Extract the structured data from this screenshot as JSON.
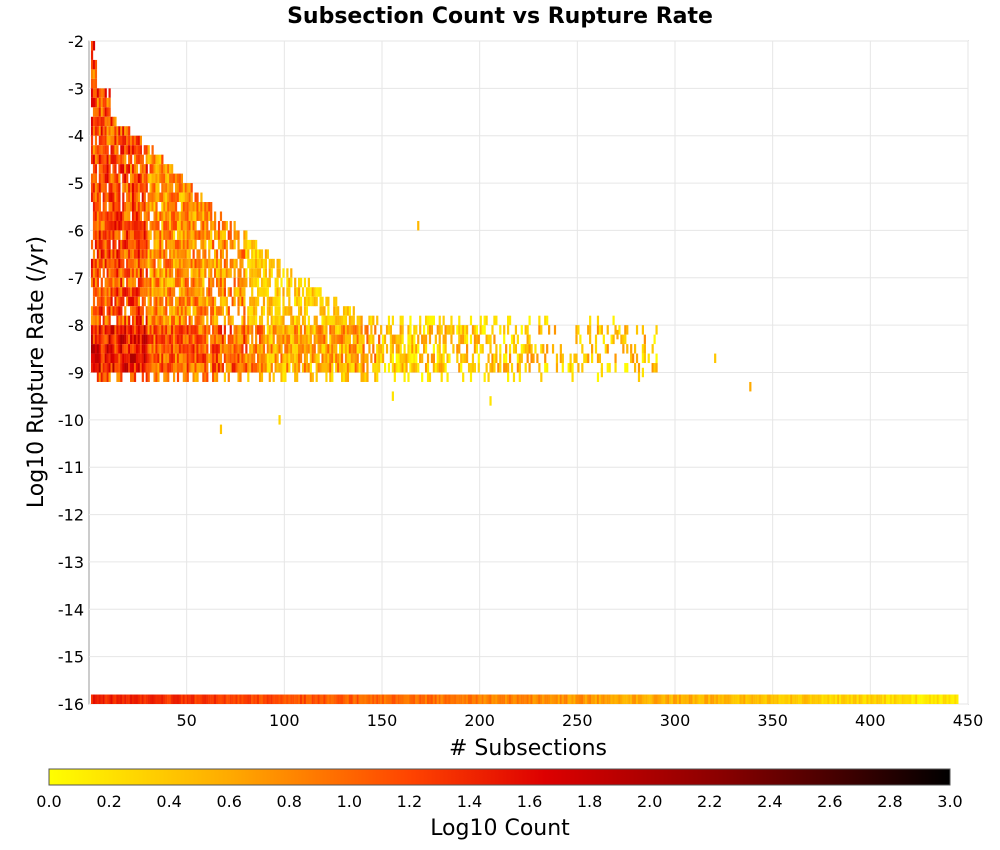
{
  "chart_data": {
    "type": "heatmap",
    "title": "Subsection Count vs Rupture Rate",
    "xlabel": "# Subsections",
    "ylabel": "Log10 Rupture Rate (/yr)",
    "xlim": [
      0,
      450
    ],
    "ylim": [
      -16,
      -2
    ],
    "x_ticks": [
      50,
      100,
      150,
      200,
      250,
      300,
      350,
      400,
      450
    ],
    "y_ticks": [
      -2,
      -3,
      -4,
      -5,
      -6,
      -7,
      -8,
      -9,
      -10,
      -11,
      -12,
      -13,
      -14,
      -15,
      -16
    ],
    "grid": true,
    "bin_width_x": 1,
    "bin_height_y": 0.2,
    "colorbar": {
      "label": "Log10 Count",
      "range": [
        0,
        3
      ],
      "ticks": [
        "0.0",
        "0.2",
        "0.4",
        "0.6",
        "0.8",
        "1.0",
        "1.2",
        "1.4",
        "1.6",
        "1.8",
        "2.0",
        "2.2",
        "2.4",
        "2.6",
        "2.8",
        "3.0"
      ],
      "stops": [
        "#ffff00",
        "#ffaa00",
        "#ff4400",
        "#dd0000",
        "#880000",
        "#000000"
      ]
    },
    "cells": [
      {
        "x": 168,
        "y": -6.0,
        "c": 0.5
      },
      {
        "x": 320,
        "y": -8.8,
        "c": 0.4
      },
      {
        "x": 338,
        "y": -9.4,
        "c": 0.6
      },
      {
        "x": 283,
        "y": -9.1,
        "c": 0.2
      },
      {
        "x": 270,
        "y": -8.3,
        "c": 0.6
      },
      {
        "x": 67,
        "y": -10.3,
        "c": 0.4
      },
      {
        "x": 97,
        "y": -10.1,
        "c": 0.3
      },
      {
        "x": 205,
        "y": -9.7,
        "c": 0.2
      },
      {
        "x": 155,
        "y": -9.6,
        "c": 0.2
      },
      {
        "x": 242,
        "y": -8.8,
        "c": 0.4
      },
      {
        "x": 262,
        "y": -9.1,
        "c": 0.3
      }
    ]
  }
}
